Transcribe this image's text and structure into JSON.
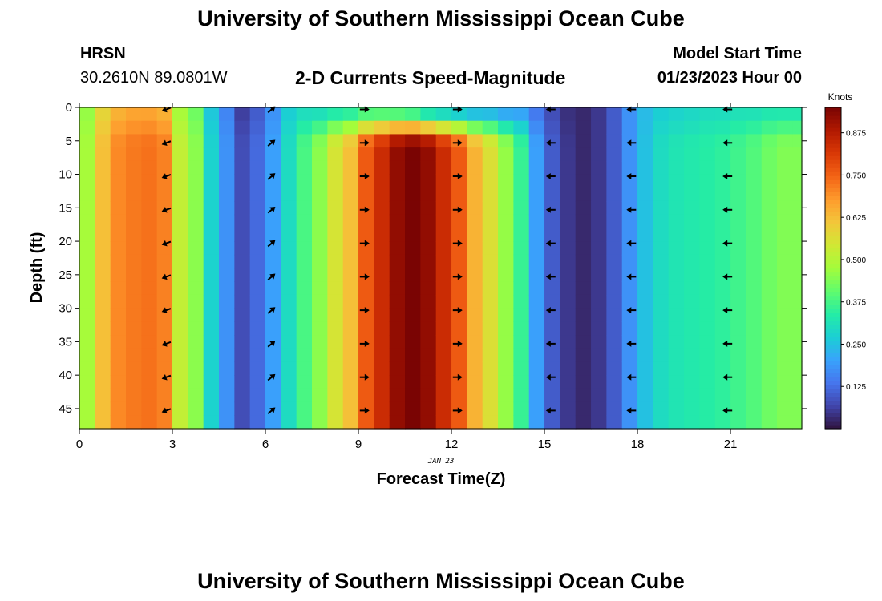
{
  "header": {
    "title": "University of Southern Mississippi Ocean Cube",
    "station": "HRSN",
    "coords": "30.2610N  89.0801W",
    "subtitle": "2-D Currents Speed-Magnitude",
    "model_label": "Model Start Time",
    "model_time": "01/23/2023 Hour 00"
  },
  "footer": {
    "title": "University of Southern Mississippi Ocean Cube"
  },
  "chart_data": {
    "type": "heatmap",
    "xlabel": "Forecast Time(Z)",
    "ylabel": "Depth (ft)",
    "date_label": "JAN 23",
    "xlim": [
      0,
      23.3
    ],
    "ylim": [
      48,
      0
    ],
    "x_ticks": [
      0,
      3,
      6,
      9,
      12,
      15,
      18,
      21
    ],
    "y_ticks": [
      0,
      5,
      10,
      15,
      20,
      25,
      30,
      35,
      40,
      45
    ],
    "colorbar": {
      "label": "Knots",
      "range": [
        0,
        0.95
      ],
      "ticks": [
        "0.875",
        "0.750",
        "0.625",
        "0.500",
        "0.375",
        "0.250",
        "0.125"
      ],
      "tick_values": [
        0.875,
        0.75,
        0.625,
        0.5,
        0.375,
        0.25,
        0.125
      ],
      "colormap": [
        "#30123b",
        "#4145ab",
        "#4675ed",
        "#39a2fc",
        "#1bcfd4",
        "#24eca6",
        "#61fc6c",
        "#a4fc3b",
        "#d1e834",
        "#f3c63a",
        "#fe9b2d",
        "#f36315",
        "#d93806",
        "#b11901",
        "#7a0403"
      ]
    },
    "hours": [
      0,
      0.5,
      1,
      1.5,
      2,
      2.5,
      3,
      3.5,
      4,
      4.5,
      5,
      5.5,
      6,
      6.5,
      7,
      7.5,
      8,
      8.5,
      9,
      9.5,
      10,
      10.5,
      11,
      11.5,
      12,
      12.5,
      13,
      13.5,
      14,
      14.5,
      15,
      15.5,
      16,
      16.5,
      17,
      17.5,
      18,
      18.5,
      19,
      19.5,
      20,
      20.5,
      21,
      21.5,
      22,
      22.5,
      23
    ],
    "speed_bottom": [
      0.48,
      0.62,
      0.7,
      0.72,
      0.73,
      0.71,
      0.52,
      0.45,
      0.28,
      0.18,
      0.08,
      0.12,
      0.2,
      0.3,
      0.38,
      0.45,
      0.55,
      0.62,
      0.76,
      0.84,
      0.92,
      0.95,
      0.92,
      0.84,
      0.76,
      0.64,
      0.56,
      0.46,
      0.36,
      0.2,
      0.1,
      0.05,
      0.03,
      0.05,
      0.1,
      0.18,
      0.25,
      0.3,
      0.32,
      0.33,
      0.34,
      0.35,
      0.37,
      0.39,
      0.42,
      0.44,
      0.44
    ],
    "speed_surface": [
      0.46,
      0.58,
      0.64,
      0.66,
      0.66,
      0.64,
      0.48,
      0.42,
      0.26,
      0.16,
      0.06,
      0.1,
      0.18,
      0.27,
      0.3,
      0.3,
      0.32,
      0.33,
      0.36,
      0.36,
      0.35,
      0.33,
      0.28,
      0.26,
      0.24,
      0.22,
      0.22,
      0.2,
      0.2,
      0.14,
      0.08,
      0.04,
      0.03,
      0.05,
      0.1,
      0.18,
      0.24,
      0.27,
      0.28,
      0.29,
      0.3,
      0.3,
      0.31,
      0.31,
      0.32,
      0.32,
      0.32
    ],
    "vector_hours": [
      2.8,
      6.2,
      9.2,
      12.2,
      15.2,
      17.8,
      20.9
    ],
    "vector_depths": [
      0,
      5,
      10,
      15,
      20,
      25,
      30,
      35,
      40,
      45
    ],
    "vector_directions": [
      "SW",
      "NE",
      "E",
      "E",
      "W",
      "W",
      "W"
    ]
  }
}
